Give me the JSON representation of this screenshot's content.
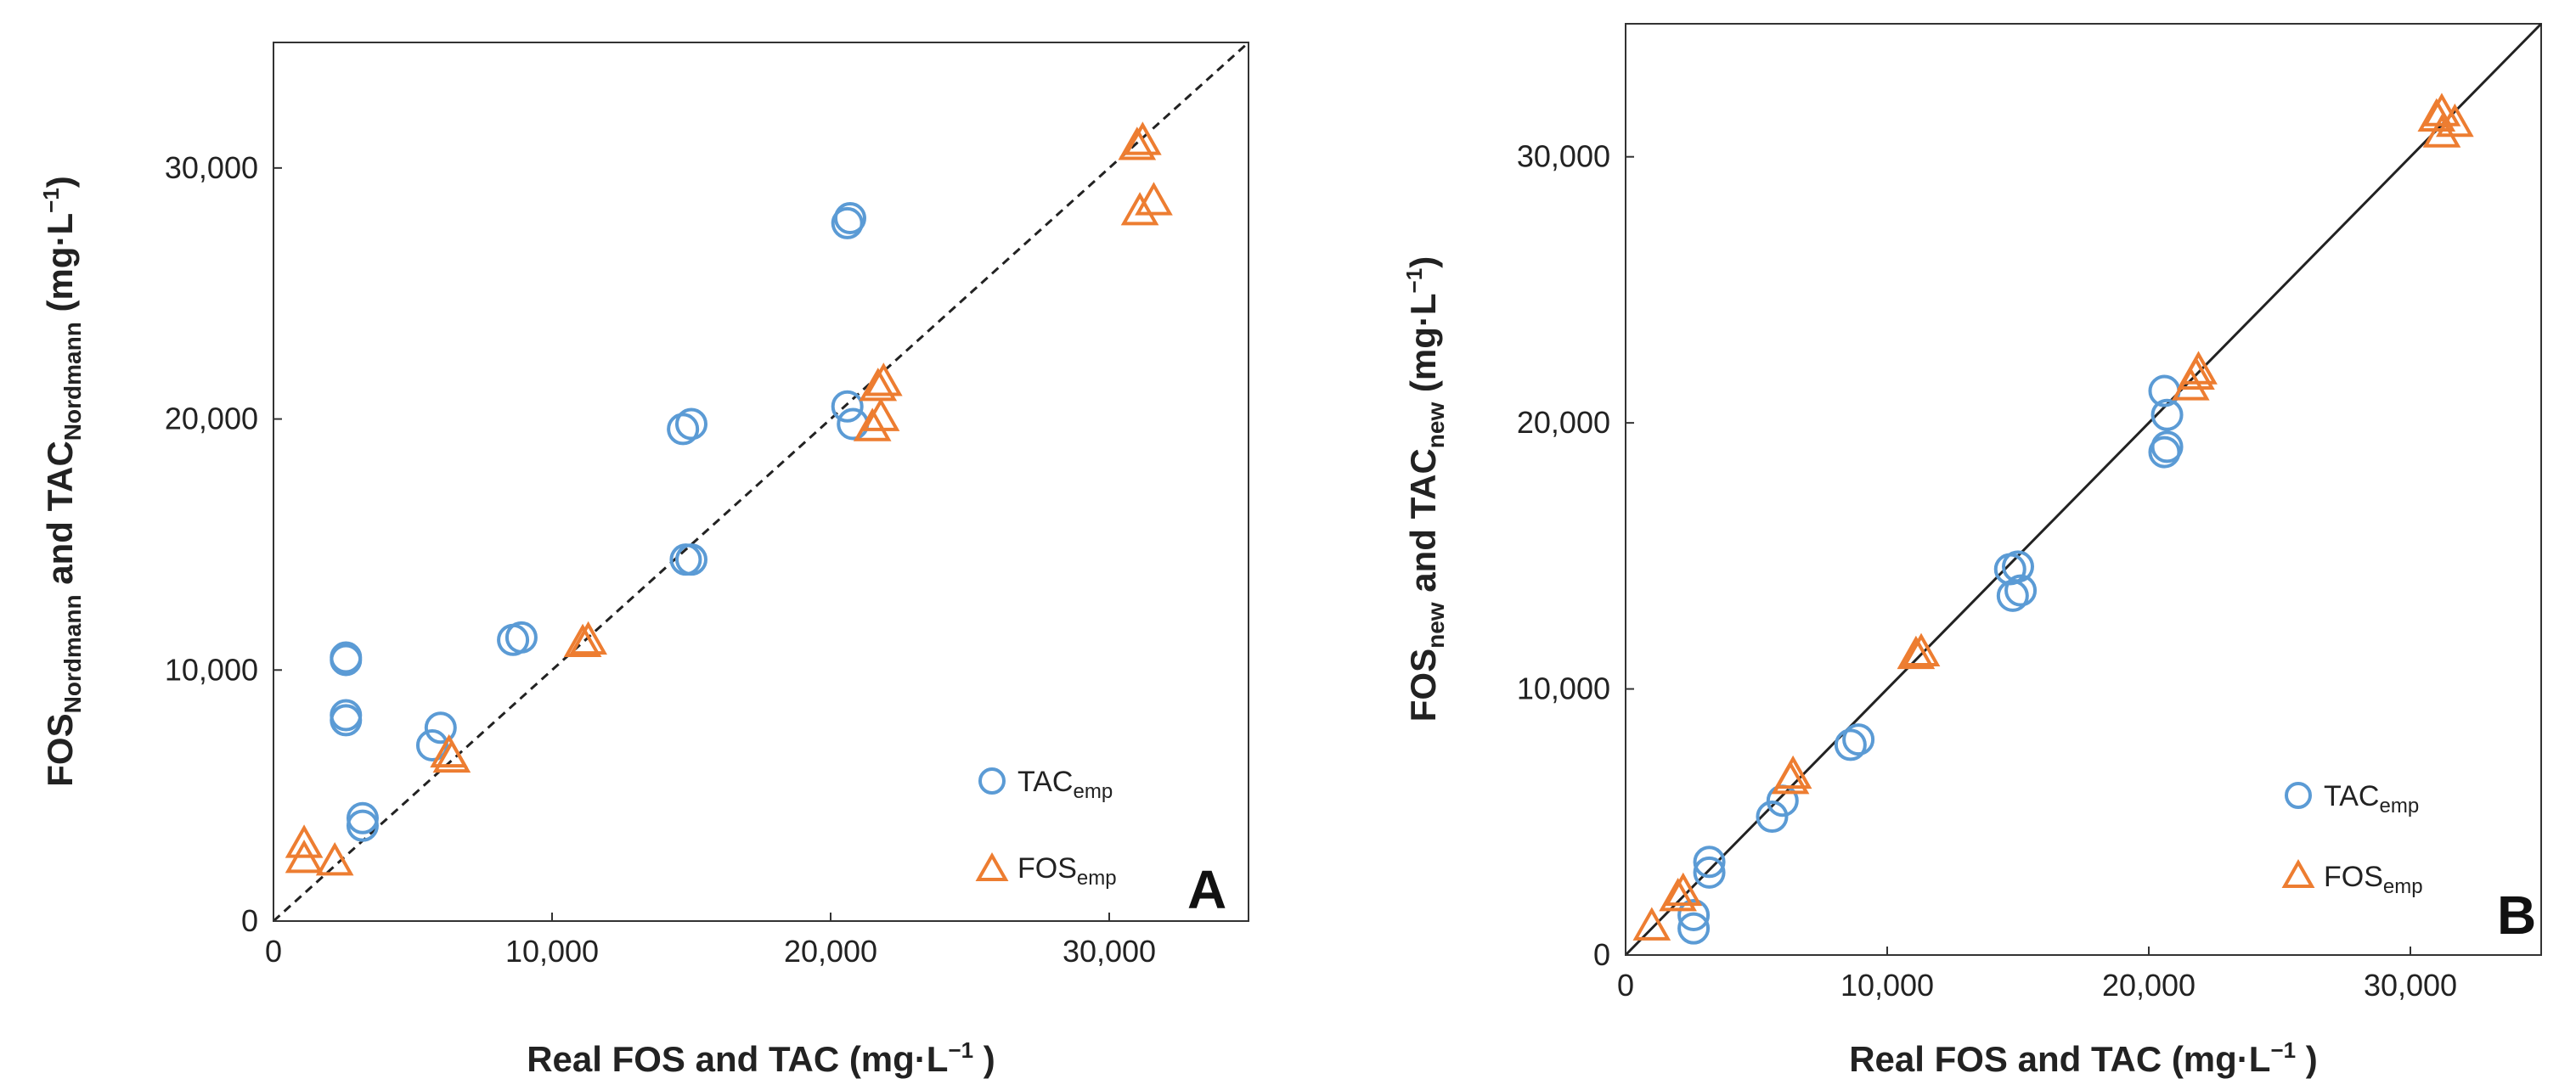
{
  "chart_data": [
    {
      "type": "scatter",
      "panel_label": "A",
      "xlabel": {
        "text": "Real FOS and TAC (mg·L",
        "sup": "−1",
        "close": " )"
      },
      "ylabel": {
        "p1": "FOS",
        "s1": "Nordmann",
        "p2": " and TAC",
        "s2": "Nordmann",
        "p3": " (mg·L",
        "sup": "−1",
        "p4": ")"
      },
      "xlim": [
        0,
        35000
      ],
      "ylim": [
        0,
        35000
      ],
      "xticks": [
        0,
        10000,
        20000,
        30000
      ],
      "yticks": [
        0,
        10000,
        20000,
        30000
      ],
      "xtick_labels": [
        "0",
        "10,000",
        "20,000",
        "30,000"
      ],
      "ytick_labels": [
        "0",
        "10,000",
        "20,000",
        "30,000"
      ],
      "reference_line": {
        "style": "dashed",
        "from": [
          0,
          0
        ],
        "to": [
          35000,
          35000
        ]
      },
      "legend_position": "bottom-right",
      "series": [
        {
          "name": "TAC",
          "name_sub": "emp",
          "marker": "circle",
          "color": "#5B9BD5",
          "points": [
            [
              2600,
              10500
            ],
            [
              2600,
              10400
            ],
            [
              2600,
              8200
            ],
            [
              2600,
              8000
            ],
            [
              3200,
              4100
            ],
            [
              3200,
              3800
            ],
            [
              5700,
              7000
            ],
            [
              6000,
              7700
            ],
            [
              8600,
              11200
            ],
            [
              8900,
              11300
            ],
            [
              14700,
              19600
            ],
            [
              15000,
              19800
            ],
            [
              14800,
              14400
            ],
            [
              15000,
              14400
            ],
            [
              20600,
              27800
            ],
            [
              20700,
              28000
            ],
            [
              20600,
              20500
            ],
            [
              20800,
              19800
            ]
          ]
        },
        {
          "name": "FOS",
          "name_sub": "emp",
          "marker": "triangle",
          "color": "#ED7D31",
          "points": [
            [
              1100,
              3100
            ],
            [
              1100,
              2500
            ],
            [
              2200,
              2400
            ],
            [
              6300,
              6700
            ],
            [
              6400,
              6500
            ],
            [
              11100,
              11100
            ],
            [
              11300,
              11200
            ],
            [
              21500,
              19700
            ],
            [
              21800,
              20100
            ],
            [
              21700,
              21300
            ],
            [
              21900,
              21500
            ],
            [
              31000,
              30900
            ],
            [
              31200,
              31100
            ],
            [
              31100,
              28300
            ],
            [
              31600,
              28700
            ]
          ]
        }
      ]
    },
    {
      "type": "scatter",
      "panel_label": "B",
      "xlabel": {
        "text": "Real FOS and TAC (mg·L",
        "sup": "−1",
        "close": " )"
      },
      "ylabel": {
        "p1": "FOS",
        "s1": "new",
        "p2": " and TAC",
        "s2": "new",
        "p3": " (mg·L",
        "sup": "−1",
        "p4": ")"
      },
      "xlim": [
        0,
        35000
      ],
      "ylim": [
        0,
        35000
      ],
      "xticks": [
        0,
        10000,
        20000,
        30000
      ],
      "yticks": [
        0,
        10000,
        20000,
        30000
      ],
      "xtick_labels": [
        "0",
        "10,000",
        "20,000",
        "30,000"
      ],
      "ytick_labels": [
        "0",
        "10,000",
        "20,000",
        "30,000"
      ],
      "reference_line": {
        "style": "solid",
        "from": [
          0,
          0
        ],
        "to": [
          35000,
          35000
        ]
      },
      "legend_position": "bottom-right",
      "series": [
        {
          "name": "TAC",
          "name_sub": "emp",
          "marker": "circle",
          "color": "#5B9BD5",
          "points": [
            [
              2600,
              1500
            ],
            [
              2600,
              1000
            ],
            [
              3200,
              3500
            ],
            [
              3200,
              3100
            ],
            [
              5600,
              5200
            ],
            [
              6000,
              5800
            ],
            [
              8600,
              7900
            ],
            [
              8900,
              8100
            ],
            [
              14700,
              14500
            ],
            [
              15000,
              14600
            ],
            [
              14800,
              13500
            ],
            [
              15100,
              13700
            ],
            [
              20600,
              21200
            ],
            [
              20700,
              20300
            ],
            [
              20600,
              18900
            ],
            [
              20700,
              19100
            ]
          ]
        },
        {
          "name": "FOS",
          "name_sub": "emp",
          "marker": "triangle",
          "color": "#ED7D31",
          "points": [
            [
              1000,
              1100
            ],
            [
              2000,
              2200
            ],
            [
              2200,
              2400
            ],
            [
              6300,
              6600
            ],
            [
              6400,
              6800
            ],
            [
              11100,
              11300
            ],
            [
              11300,
              11400
            ],
            [
              21600,
              21400
            ],
            [
              21800,
              21800
            ],
            [
              21900,
              22000
            ],
            [
              31000,
              31500
            ],
            [
              31200,
              30900
            ],
            [
              31700,
              31300
            ],
            [
              31200,
              31700
            ]
          ]
        }
      ]
    }
  ]
}
